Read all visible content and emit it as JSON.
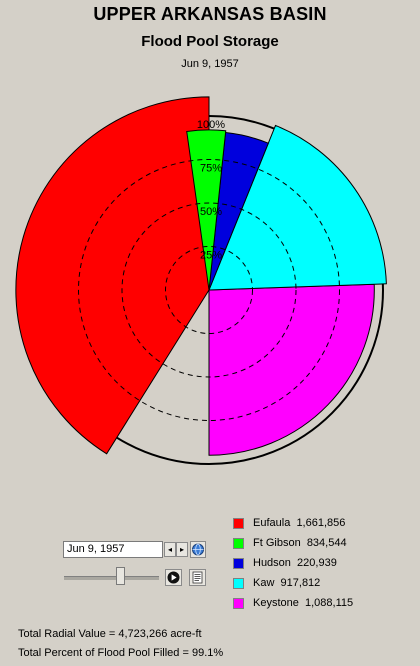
{
  "header": {
    "title": "UPPER ARKANSAS BASIN",
    "subtitle": "Flood Pool Storage",
    "date": "Jun 9, 1957"
  },
  "chart_data": {
    "type": "polar-area",
    "ring_labels": [
      "25%",
      "50%",
      "75%",
      "100%"
    ],
    "ring_values": [
      25,
      50,
      75,
      100
    ],
    "max_value": 100,
    "grid": true,
    "segments": [
      {
        "name": "Eufaula",
        "value_label": "1,661,856",
        "start_deg": 0,
        "end_deg": 148,
        "percent": 111,
        "color": "#ff0000"
      },
      {
        "name": "Keystone",
        "value_label": "1,088,115",
        "start_deg": 180,
        "end_deg": 272,
        "percent": 95,
        "color": "#ff00ff"
      },
      {
        "name": "Kaw",
        "value_label": "917,812",
        "start_deg": 272,
        "end_deg": 338,
        "percent": 102,
        "color": "#00ffff"
      },
      {
        "name": "Hudson",
        "value_label": "220,939",
        "start_deg": 338,
        "end_deg": 354,
        "percent": 91,
        "color": "#0000dd"
      },
      {
        "name": "Ft Gibson",
        "value_label": "834,544",
        "start_deg": 354,
        "end_deg": 368,
        "percent": 92,
        "color": "#00ff00"
      }
    ]
  },
  "legend": {
    "items": [
      {
        "name": "Eufaula",
        "value": "1,661,856",
        "color": "#ff0000"
      },
      {
        "name": "Ft Gibson",
        "value": "834,544",
        "color": "#00ff00"
      },
      {
        "name": "Hudson",
        "value": "220,939",
        "color": "#0000dd"
      },
      {
        "name": "Kaw",
        "value": "917,812",
        "color": "#00ffff"
      },
      {
        "name": "Keystone",
        "value": "1,088,115",
        "color": "#ff00ff"
      }
    ]
  },
  "controls": {
    "date_value": "Jun 9, 1957",
    "prev_icon": "◂",
    "next_icon": "▸",
    "slider_position": 0.55
  },
  "totals": {
    "radial_value": "Total Radial Value =  4,723,266 acre-ft",
    "percent_filled": "Total Percent of Flood Pool Filled  =  99.1%"
  }
}
